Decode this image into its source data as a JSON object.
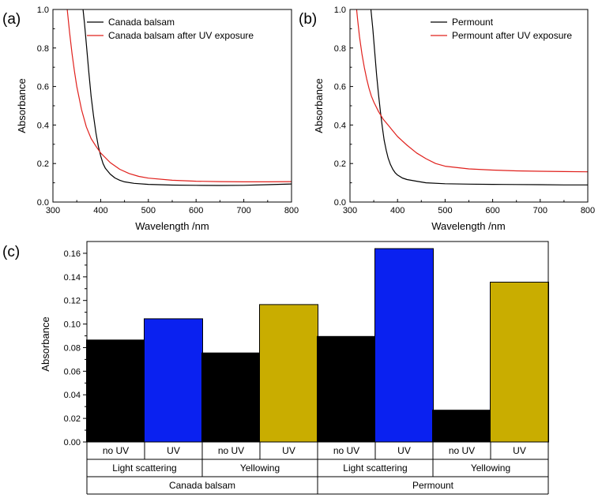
{
  "chart_data": [
    {
      "panel": "(a)",
      "type": "line",
      "xlabel": "Wavelength /nm",
      "ylabel": "Absorbance",
      "xlim": [
        300,
        800
      ],
      "ylim": [
        0,
        1.0
      ],
      "xticks": [
        300,
        400,
        500,
        600,
        700,
        800
      ],
      "yticks": [
        0.0,
        0.2,
        0.4,
        0.6,
        0.8,
        1.0
      ],
      "xtick_labels": [
        "300",
        "400",
        "500",
        "600",
        "700",
        "800"
      ],
      "ytick_labels": [
        "0.0",
        "0.2",
        "0.4",
        "0.6",
        "0.8",
        "1.0"
      ],
      "legend_position": "top-right",
      "series": [
        {
          "name": "Canada balsam",
          "color": "#000000",
          "x": [
            363,
            366,
            370,
            375,
            380,
            385,
            390,
            395,
            400,
            405,
            410,
            420,
            430,
            440,
            450,
            470,
            500,
            550,
            600,
            650,
            700,
            750,
            800
          ],
          "y": [
            1.0,
            0.93,
            0.82,
            0.68,
            0.55,
            0.45,
            0.36,
            0.29,
            0.24,
            0.2,
            0.175,
            0.145,
            0.125,
            0.113,
            0.105,
            0.097,
            0.092,
            0.088,
            0.087,
            0.086,
            0.087,
            0.09,
            0.094
          ]
        },
        {
          "name": "Canada balsam after UV exposure",
          "color": "#e0201c",
          "x": [
            330,
            335,
            340,
            345,
            350,
            360,
            370,
            380,
            390,
            400,
            420,
            440,
            460,
            480,
            500,
            550,
            600,
            650,
            700,
            750,
            800
          ],
          "y": [
            1.0,
            0.88,
            0.77,
            0.68,
            0.6,
            0.48,
            0.39,
            0.33,
            0.29,
            0.255,
            0.205,
            0.17,
            0.148,
            0.133,
            0.124,
            0.113,
            0.108,
            0.106,
            0.105,
            0.105,
            0.106
          ]
        }
      ]
    },
    {
      "panel": "(b)",
      "type": "line",
      "xlabel": "Wavelength /nm",
      "ylabel": "Absorbance",
      "xlim": [
        300,
        800
      ],
      "ylim": [
        0,
        1.0
      ],
      "xticks": [
        300,
        400,
        500,
        600,
        700,
        800
      ],
      "yticks": [
        0.0,
        0.2,
        0.4,
        0.6,
        0.8,
        1.0
      ],
      "xtick_labels": [
        "300",
        "400",
        "500",
        "600",
        "700",
        "800"
      ],
      "ytick_labels": [
        "0.0",
        "0.2",
        "0.4",
        "0.6",
        "0.8",
        "1.0"
      ],
      "legend_position": "top-right",
      "series": [
        {
          "name": "Permount",
          "color": "#000000",
          "x": [
            344,
            348,
            352,
            356,
            360,
            364,
            368,
            372,
            376,
            380,
            385,
            390,
            395,
            400,
            410,
            420,
            440,
            460,
            500,
            550,
            600,
            650,
            700,
            750,
            800
          ],
          "y": [
            1.0,
            0.9,
            0.78,
            0.66,
            0.56,
            0.47,
            0.39,
            0.32,
            0.27,
            0.23,
            0.195,
            0.17,
            0.152,
            0.14,
            0.125,
            0.117,
            0.108,
            0.1,
            0.095,
            0.093,
            0.092,
            0.091,
            0.09,
            0.089,
            0.089
          ]
        },
        {
          "name": "Permount after UV exposure",
          "color": "#e0201c",
          "x": [
            314,
            316,
            320,
            325,
            330,
            335,
            340,
            345,
            350,
            360,
            370,
            380,
            390,
            400,
            420,
            440,
            460,
            480,
            500,
            550,
            600,
            650,
            700,
            750,
            800
          ],
          "y": [
            1.0,
            0.95,
            0.86,
            0.77,
            0.7,
            0.64,
            0.59,
            0.55,
            0.52,
            0.47,
            0.43,
            0.4,
            0.37,
            0.34,
            0.295,
            0.255,
            0.225,
            0.2,
            0.186,
            0.172,
            0.166,
            0.162,
            0.16,
            0.158,
            0.157
          ]
        }
      ]
    },
    {
      "panel": "(c)",
      "type": "bar",
      "ylabel": "Absorbance",
      "ylim": [
        0,
        0.17
      ],
      "yticks": [
        0.0,
        0.02,
        0.04,
        0.06,
        0.08,
        0.1,
        0.12,
        0.14,
        0.16
      ],
      "ytick_labels": [
        "0.00",
        "0.02",
        "0.04",
        "0.06",
        "0.08",
        "0.10",
        "0.12",
        "0.14",
        "0.16"
      ],
      "categories": [
        "no UV",
        "UV",
        "no UV",
        "UV",
        "no UV",
        "UV",
        "no UV",
        "UV"
      ],
      "values": [
        0.0865,
        0.1045,
        0.0755,
        0.1165,
        0.0895,
        0.164,
        0.027,
        0.1355
      ],
      "colors": [
        "#000000",
        "#0a21f0",
        "#000000",
        "#c9ad00",
        "#000000",
        "#0a21f0",
        "#000000",
        "#c9ad00"
      ],
      "groups_level2": [
        "Light scattering",
        "Yellowing",
        "Light scattering",
        "Yellowing"
      ],
      "groups_level3": [
        "Canada balsam",
        "Permount"
      ]
    }
  ]
}
